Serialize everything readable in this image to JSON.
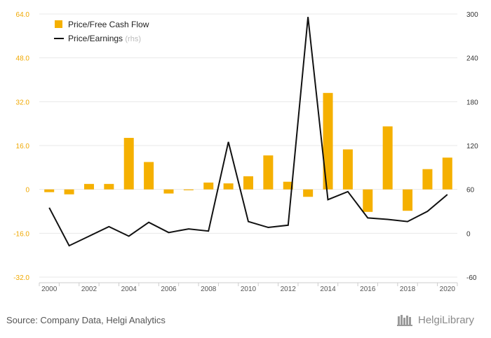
{
  "footer": {
    "source": "Source: Company Data, Helgi Analytics",
    "brand": "HelgiLibrary"
  },
  "colors": {
    "bar": "#f5b000",
    "line": "#111111",
    "left_axis": "#f0a800",
    "right_axis": "#333333",
    "grid": "#e8e8e8",
    "frame": "#cccccc"
  },
  "chart_data": {
    "type": "bar",
    "categories": [
      "2000",
      "2001",
      "2002",
      "2003",
      "2004",
      "2005",
      "2006",
      "2007",
      "2008",
      "2009",
      "2010",
      "2011",
      "2012",
      "2013",
      "2014",
      "2015",
      "2016",
      "2017",
      "2018",
      "2019",
      "2020"
    ],
    "x_tick_labels": [
      "2000",
      "2002",
      "2004",
      "2006",
      "2008",
      "2010",
      "2012",
      "2014",
      "2016",
      "2018",
      "2020"
    ],
    "series": [
      {
        "name": "Price/Free Cash Flow",
        "type": "bar",
        "axis": "left",
        "values": [
          -1.0,
          -1.8,
          2.0,
          2.0,
          18.8,
          10.0,
          -1.5,
          -0.3,
          2.5,
          2.2,
          4.8,
          12.4,
          2.8,
          -2.7,
          35.2,
          14.6,
          -8.2,
          23.0,
          -7.8,
          7.4,
          11.6
        ]
      },
      {
        "name": "Price/Earnings",
        "name_suffix": "(rhs)",
        "type": "line",
        "axis": "right",
        "values": [
          35,
          -17,
          -4,
          9,
          -4,
          15,
          1,
          6,
          3,
          125,
          16,
          8,
          11,
          296,
          46,
          57,
          21,
          19,
          16,
          30,
          53
        ]
      }
    ],
    "y_left": {
      "ylim": [
        -32,
        64
      ],
      "ticks": [
        "64.0",
        "48.0",
        "32.0",
        "16.0",
        "0",
        "-16.0",
        "-32.0"
      ]
    },
    "y_right": {
      "ylim": [
        -60,
        300
      ],
      "ticks": [
        "300",
        "240",
        "180",
        "120",
        "60",
        "0",
        "-60"
      ]
    },
    "legend_position": "top-left",
    "grid": "horizontal"
  }
}
